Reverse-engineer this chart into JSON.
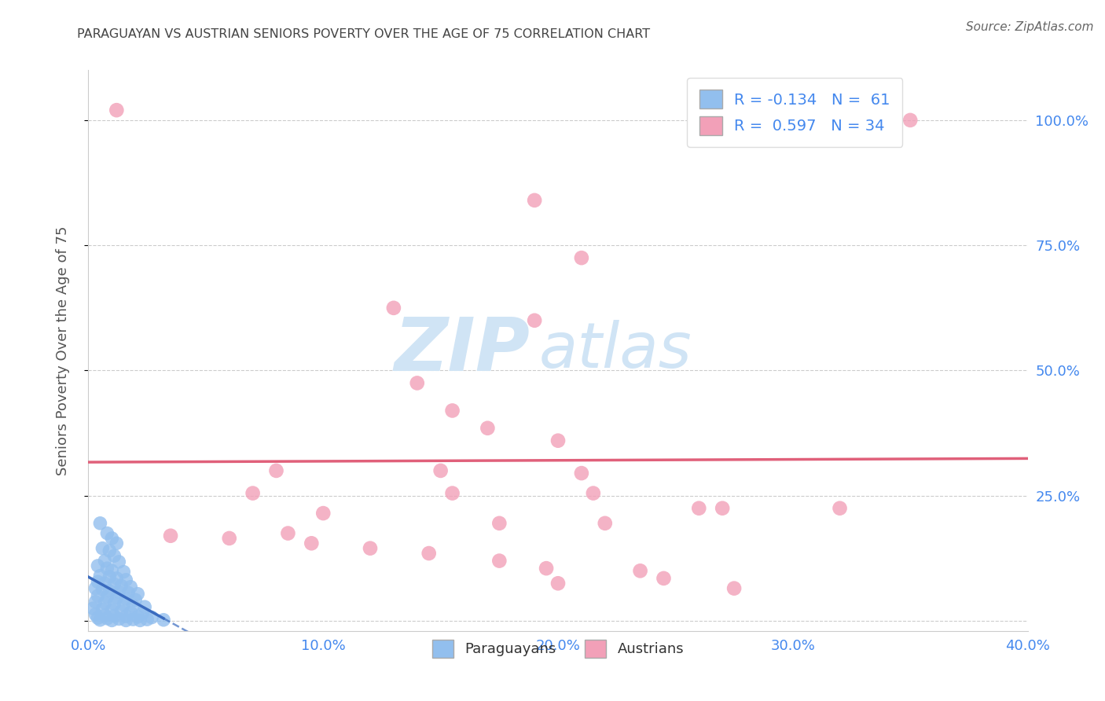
{
  "title": "PARAGUAYAN VS AUSTRIAN SENIORS POVERTY OVER THE AGE OF 75 CORRELATION CHART",
  "source": "Source: ZipAtlas.com",
  "ylabel": "Seniors Poverty Over the Age of 75",
  "xlim": [
    0.0,
    0.4
  ],
  "ylim": [
    -0.02,
    1.1
  ],
  "yticks": [
    0.0,
    0.25,
    0.5,
    0.75,
    1.0
  ],
  "xticks": [
    0.0,
    0.1,
    0.2,
    0.3,
    0.4
  ],
  "xtick_labels": [
    "0.0%",
    "10.0%",
    "20.0%",
    "30.0%",
    "40.0%"
  ],
  "ytick_labels": [
    "",
    "25.0%",
    "50.0%",
    "75.0%",
    "100.0%"
  ],
  "paraguayan_color": "#92bfee",
  "austrian_color": "#f2a0b8",
  "paraguayan_line_color": "#3a6bbf",
  "austrian_line_color": "#e0607a",
  "paraguayan_R": -0.134,
  "paraguayan_N": 61,
  "austrian_R": 0.597,
  "austrian_N": 34,
  "paraguayan_scatter": [
    [
      0.005,
      0.195
    ],
    [
      0.008,
      0.175
    ],
    [
      0.01,
      0.165
    ],
    [
      0.012,
      0.155
    ],
    [
      0.006,
      0.145
    ],
    [
      0.009,
      0.14
    ],
    [
      0.011,
      0.13
    ],
    [
      0.007,
      0.12
    ],
    [
      0.013,
      0.118
    ],
    [
      0.004,
      0.11
    ],
    [
      0.008,
      0.105
    ],
    [
      0.01,
      0.1
    ],
    [
      0.015,
      0.098
    ],
    [
      0.005,
      0.09
    ],
    [
      0.009,
      0.088
    ],
    [
      0.012,
      0.085
    ],
    [
      0.016,
      0.082
    ],
    [
      0.004,
      0.078
    ],
    [
      0.007,
      0.075
    ],
    [
      0.011,
      0.073
    ],
    [
      0.014,
      0.07
    ],
    [
      0.018,
      0.068
    ],
    [
      0.003,
      0.065
    ],
    [
      0.006,
      0.063
    ],
    [
      0.009,
      0.06
    ],
    [
      0.013,
      0.058
    ],
    [
      0.017,
      0.056
    ],
    [
      0.021,
      0.054
    ],
    [
      0.004,
      0.05
    ],
    [
      0.008,
      0.048
    ],
    [
      0.012,
      0.046
    ],
    [
      0.016,
      0.044
    ],
    [
      0.02,
      0.042
    ],
    [
      0.003,
      0.038
    ],
    [
      0.007,
      0.036
    ],
    [
      0.011,
      0.034
    ],
    [
      0.015,
      0.032
    ],
    [
      0.019,
      0.03
    ],
    [
      0.024,
      0.028
    ],
    [
      0.002,
      0.025
    ],
    [
      0.006,
      0.023
    ],
    [
      0.01,
      0.021
    ],
    [
      0.014,
      0.019
    ],
    [
      0.018,
      0.017
    ],
    [
      0.023,
      0.015
    ],
    [
      0.003,
      0.013
    ],
    [
      0.007,
      0.011
    ],
    [
      0.011,
      0.01
    ],
    [
      0.016,
      0.009
    ],
    [
      0.021,
      0.008
    ],
    [
      0.027,
      0.007
    ],
    [
      0.004,
      0.006
    ],
    [
      0.008,
      0.005
    ],
    [
      0.013,
      0.004
    ],
    [
      0.019,
      0.003
    ],
    [
      0.025,
      0.003
    ],
    [
      0.032,
      0.002
    ],
    [
      0.005,
      0.002
    ],
    [
      0.01,
      0.001
    ],
    [
      0.016,
      0.001
    ],
    [
      0.022,
      0.001
    ]
  ],
  "austrian_scatter": [
    [
      0.012,
      1.02
    ],
    [
      0.35,
      1.0
    ],
    [
      0.19,
      0.84
    ],
    [
      0.21,
      0.725
    ],
    [
      0.13,
      0.625
    ],
    [
      0.19,
      0.6
    ],
    [
      0.14,
      0.475
    ],
    [
      0.155,
      0.42
    ],
    [
      0.17,
      0.385
    ],
    [
      0.2,
      0.36
    ],
    [
      0.08,
      0.3
    ],
    [
      0.15,
      0.3
    ],
    [
      0.21,
      0.295
    ],
    [
      0.07,
      0.255
    ],
    [
      0.155,
      0.255
    ],
    [
      0.215,
      0.255
    ],
    [
      0.26,
      0.225
    ],
    [
      0.1,
      0.215
    ],
    [
      0.175,
      0.195
    ],
    [
      0.22,
      0.195
    ],
    [
      0.27,
      0.225
    ],
    [
      0.32,
      0.225
    ],
    [
      0.035,
      0.17
    ],
    [
      0.06,
      0.165
    ],
    [
      0.095,
      0.155
    ],
    [
      0.12,
      0.145
    ],
    [
      0.145,
      0.135
    ],
    [
      0.175,
      0.12
    ],
    [
      0.195,
      0.105
    ],
    [
      0.235,
      0.1
    ],
    [
      0.245,
      0.085
    ],
    [
      0.2,
      0.075
    ],
    [
      0.275,
      0.065
    ],
    [
      0.085,
      0.175
    ]
  ],
  "watermark_zip": "ZIP",
  "watermark_atlas": "atlas",
  "background_color": "#ffffff",
  "grid_color": "#cccccc",
  "tick_label_color": "#4488ee",
  "title_color": "#444444",
  "legend_text_color": "#4488ee",
  "watermark_color": "#d0e4f5"
}
